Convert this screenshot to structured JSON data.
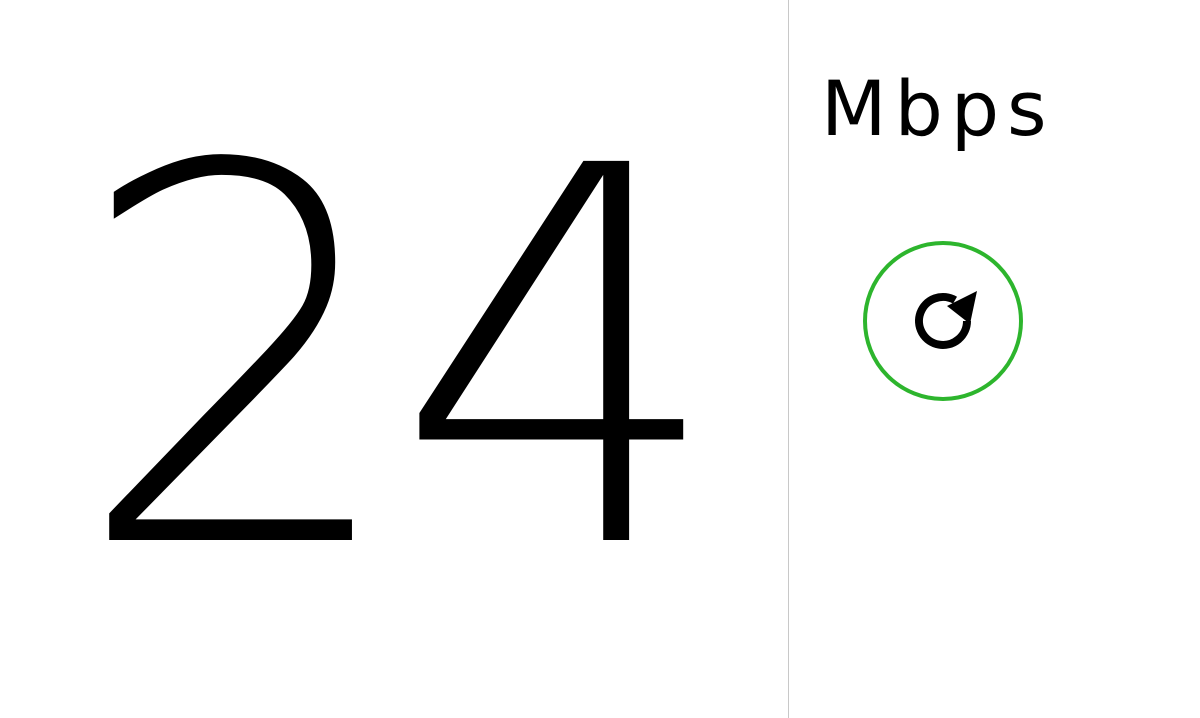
{
  "speed": {
    "value": "24",
    "unit": "Mbps"
  },
  "controls": {
    "refresh_icon": "refresh-icon"
  },
  "colors": {
    "accent": "#2db52d",
    "text": "#000000",
    "divider": "#c8c8c8",
    "background": "#ffffff"
  }
}
